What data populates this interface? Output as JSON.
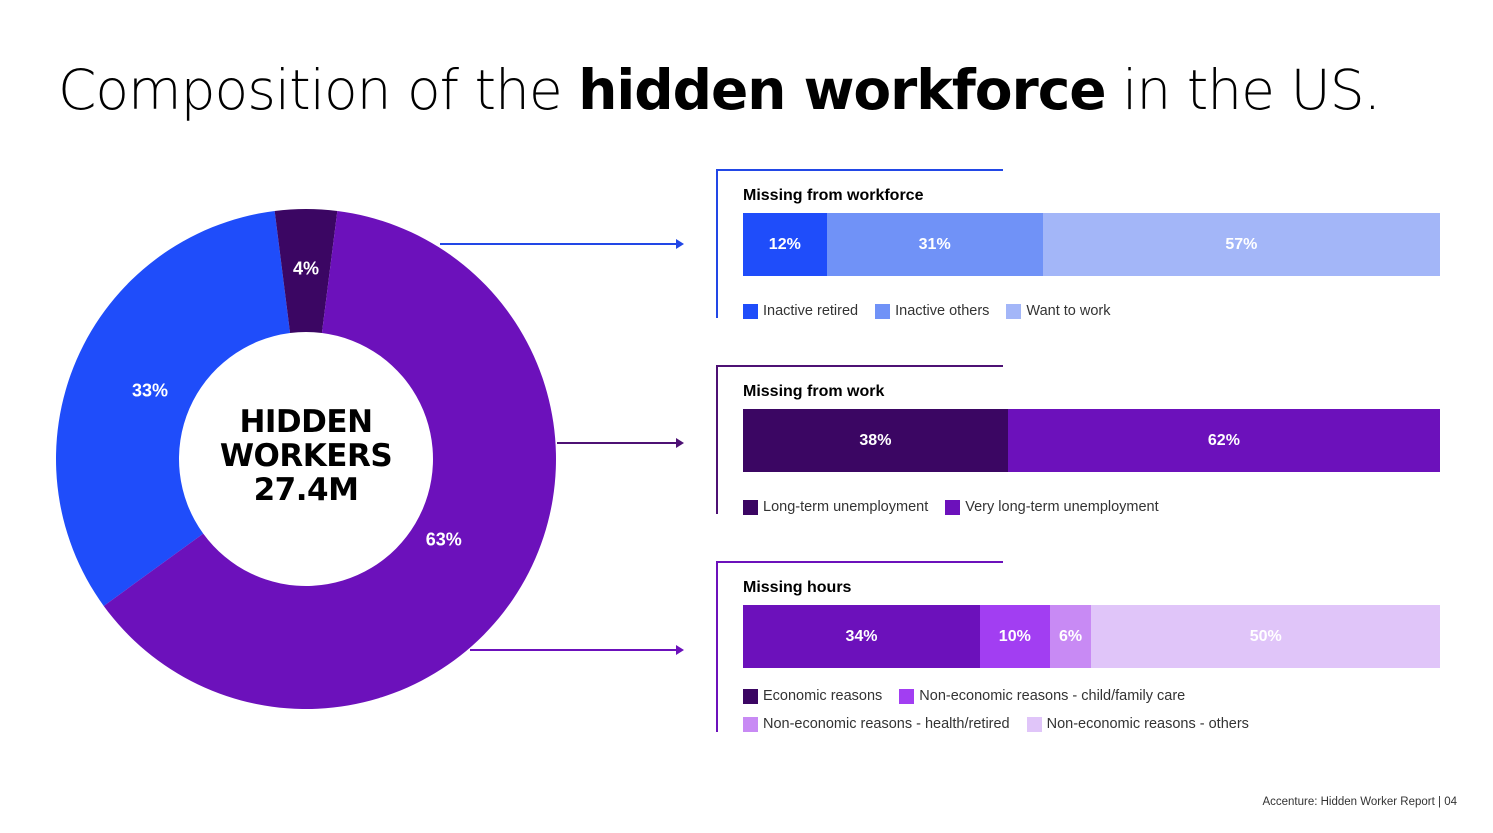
{
  "title": {
    "part1": "Composition of the ",
    "bold": "hidden workforce",
    "part2": " in the US."
  },
  "footer": "Accenture: Hidden Worker Report  |  04",
  "colors": {
    "blue_dark": "#1f4dfa",
    "blue_mid": "#7092f7",
    "blue_light": "#a3b6f8",
    "purple_darkest": "#3b0663",
    "purple_dark": "#6c11bb",
    "purple_mid": "#a23ef2",
    "purple_light": "#c88af4",
    "purple_pale": "#e0c5f9",
    "line_blue": "#2247e6",
    "line_purple": "#4d1174"
  },
  "chart_data": [
    {
      "type": "pie",
      "title": "HIDDEN WORKERS 27.4M",
      "center_label": [
        "HIDDEN",
        "WORKERS",
        "27.4M"
      ],
      "slices": [
        {
          "name": "Missing from workforce",
          "value": 33,
          "label": "33%",
          "color": "#1f4dfa"
        },
        {
          "name": "Missing from work",
          "value": 4,
          "label": "4%",
          "color": "#3b0663"
        },
        {
          "name": "Missing hours",
          "value": 63,
          "label": "63%",
          "color": "#6c11bb"
        }
      ]
    },
    {
      "type": "bar",
      "stacked": true,
      "title": "Missing from workforce",
      "series": [
        {
          "name": "Inactive retired",
          "value": 12,
          "label": "12%",
          "color": "#1f4dfa"
        },
        {
          "name": "Inactive others",
          "value": 31,
          "label": "31%",
          "color": "#7092f7"
        },
        {
          "name": "Want to work",
          "value": 57,
          "label": "57%",
          "color": "#a3b6f8"
        }
      ]
    },
    {
      "type": "bar",
      "stacked": true,
      "title": "Missing from work",
      "series": [
        {
          "name": "Long-term unemployment",
          "value": 38,
          "label": "38%",
          "color": "#3b0663"
        },
        {
          "name": "Very long-term unemployment",
          "value": 62,
          "label": "62%",
          "color": "#6c11bb"
        }
      ]
    },
    {
      "type": "bar",
      "stacked": true,
      "title": "Missing hours",
      "series": [
        {
          "name": "Economic reasons",
          "value": 34,
          "label": "34%",
          "color": "#6c11bb"
        },
        {
          "name": "Non-economic reasons - child/family care",
          "value": 10,
          "label": "10%",
          "color": "#a23ef2"
        },
        {
          "name": "Non-economic reasons - health/retired",
          "value": 6,
          "label": "6%",
          "color": "#c88af4"
        },
        {
          "name": "Non-economic reasons - others",
          "value": 50,
          "label": "50%",
          "color": "#e0c5f9"
        }
      ],
      "legend_swatch_colors": [
        "#3b0663",
        "#a23ef2",
        "#c88af4",
        "#e0c5f9"
      ]
    }
  ]
}
